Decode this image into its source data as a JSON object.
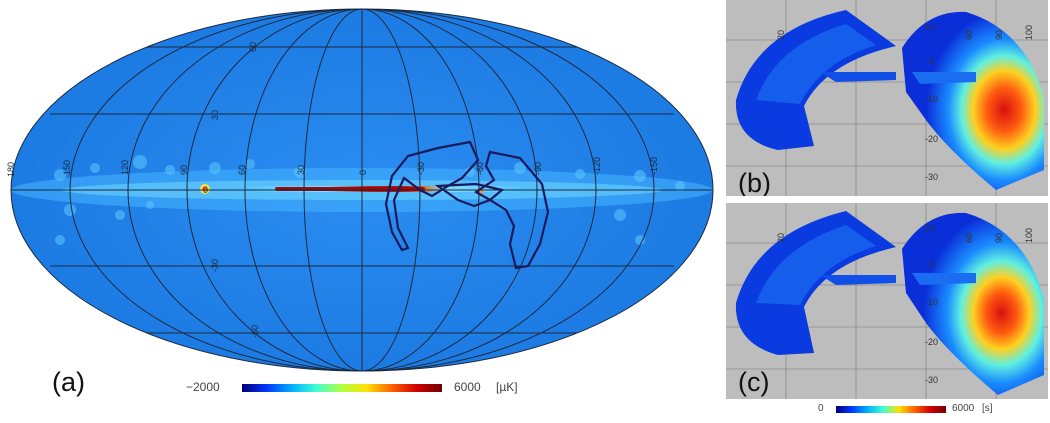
{
  "panel_a": {
    "label": "(a)",
    "meridian_labels": [
      "150",
      "120",
      "90",
      "60",
      "30",
      "0",
      "-30",
      "-60",
      "-90",
      "-120",
      "-150",
      "180"
    ],
    "parallel_labels": [
      "60",
      "30",
      "0",
      "-30",
      "-60"
    ],
    "colorbar": {
      "min_label": "−2000",
      "max_label": "6000",
      "unit": "[µK]"
    }
  },
  "panel_b": {
    "label": "(b)",
    "x_ticks": [
      "20",
      "60",
      "90",
      "100"
    ],
    "y_ticks": [
      "10",
      "0",
      "-10",
      "-20",
      "-30"
    ]
  },
  "panel_c": {
    "label": "(c)",
    "x_ticks": [
      "20",
      "60",
      "90",
      "100"
    ],
    "y_ticks": [
      "10",
      "0",
      "-10",
      "-20",
      "-30"
    ]
  },
  "hit_colorbar": {
    "min_label": "0",
    "max_label": "6000",
    "unit": "[s]"
  },
  "colors": {
    "map_bg": "#1e7fe8",
    "panel_bg": "#bdbdbd",
    "hot": "#b01010"
  }
}
